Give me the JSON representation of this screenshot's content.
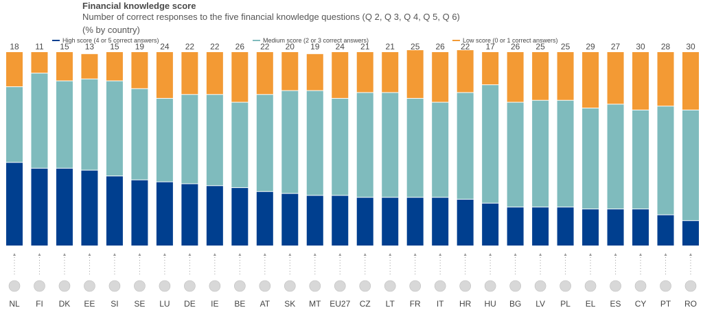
{
  "header": {
    "title": "Financial knowledge score",
    "subtitle": "Number of correct responses to the five financial knowledge questions (Q 2, Q 3, Q 4, Q 5, Q 6)",
    "unit": "(% by country)"
  },
  "legend": [
    {
      "label": "High score (4 or 5 correct answers)",
      "color": "#003f8f"
    },
    {
      "label": "Medium score (2 or 3 correct answers)",
      "color": "#7fbbbd"
    },
    {
      "label": "Low score (0 or 1 correct answers)",
      "color": "#f39a34"
    }
  ],
  "chart_data": {
    "type": "bar",
    "stacked": true,
    "categories": [
      "NL",
      "FI",
      "DK",
      "EE",
      "SI",
      "SE",
      "LU",
      "DE",
      "IE",
      "BE",
      "AT",
      "SK",
      "MT",
      "EU27",
      "CZ",
      "LT",
      "FR",
      "IT",
      "HR",
      "HU",
      "BG",
      "LV",
      "PL",
      "EL",
      "ES",
      "CY",
      "PT",
      "RO"
    ],
    "series": [
      {
        "name": "High score (4 or 5 correct answers)",
        "color": "#003f8f",
        "values": [
          43,
          40,
          40,
          39,
          36,
          34,
          33,
          32,
          31,
          30,
          28,
          27,
          26,
          26,
          25,
          25,
          25,
          25,
          24,
          22,
          20,
          20,
          20,
          19,
          19,
          19,
          16,
          13
        ]
      },
      {
        "name": "Medium score (2 or 3 correct answers)",
        "color": "#7fbbbd",
        "values": [
          39,
          49,
          45,
          47,
          49,
          47,
          43,
          46,
          47,
          44,
          50,
          53,
          54,
          50,
          54,
          54,
          51,
          49,
          55,
          61,
          54,
          55,
          55,
          52,
          54,
          51,
          56,
          57
        ]
      },
      {
        "name": "Low score (0 or 1 correct answers)",
        "color": "#f39a34",
        "values": [
          18,
          11,
          15,
          13,
          15,
          19,
          24,
          22,
          22,
          26,
          22,
          20,
          19,
          24,
          21,
          21,
          25,
          26,
          22,
          17,
          26,
          25,
          25,
          29,
          27,
          30,
          28,
          30
        ]
      }
    ],
    "ylim": [
      0,
      100
    ],
    "grid": false,
    "legend_position": "top"
  }
}
